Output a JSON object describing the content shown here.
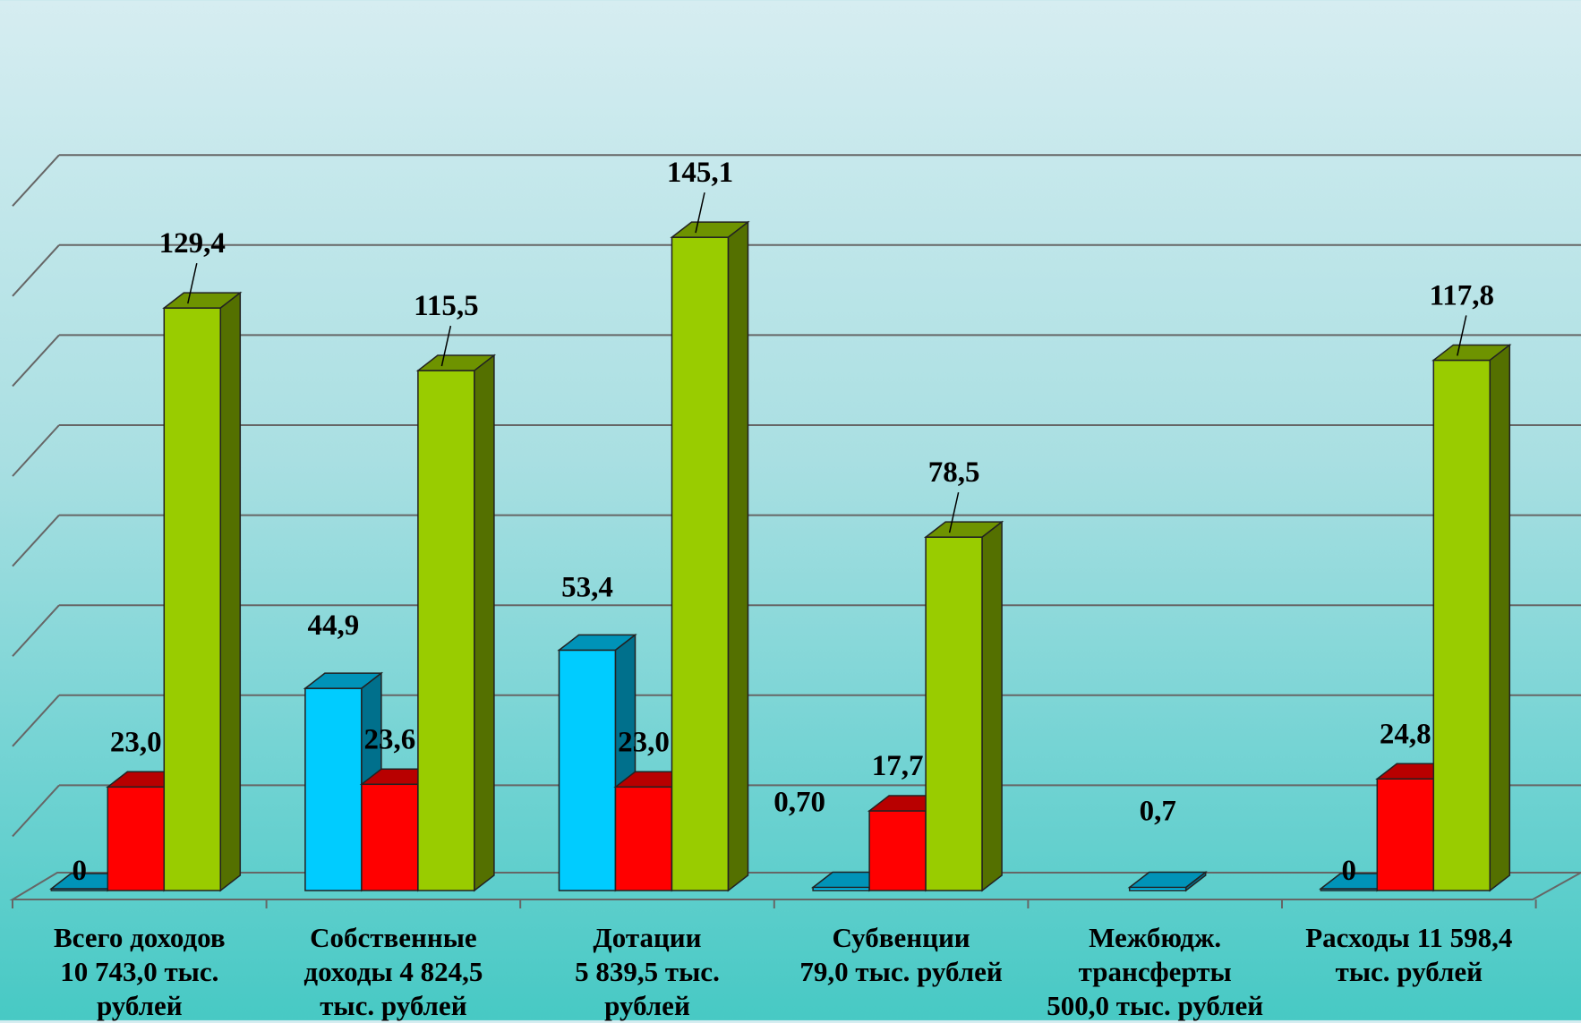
{
  "chart_data": {
    "type": "bar",
    "title": "",
    "xlabel": "",
    "ylabel": "",
    "ylim": [
      0,
      160
    ],
    "grid": true,
    "three_d": true,
    "categories": [
      "Всего доходов 10 743,0 тыс. рублей",
      "Собственные доходы 4 824,5 тыс. рублей",
      "Дотации 5 839,5 тыс. рублей",
      "Субвенции 79,0 тыс. рублей",
      "Межбюдж. трансферты 500,0 тыс. рублей",
      "Расходы 11 598,4 тыс. рублей"
    ],
    "series": [
      {
        "color": "#00ccff",
        "values": [
          0,
          44.9,
          53.4,
          0.7,
          0.7,
          0
        ],
        "labels": [
          "0",
          "44,9",
          "53,4",
          "0,70",
          "0,7",
          "0"
        ]
      },
      {
        "color": "#ff0000",
        "values": [
          23.0,
          23.6,
          23.0,
          17.7,
          null,
          24.8
        ],
        "labels": [
          "23,0",
          "23,6",
          "23,0",
          "17,7",
          "",
          "24,8"
        ]
      },
      {
        "color": "#99cc00",
        "values": [
          129.4,
          115.5,
          145.1,
          78.5,
          null,
          117.8
        ],
        "labels": [
          "129,4",
          "115,5",
          "145,1",
          "78,5",
          "",
          "117,8"
        ]
      }
    ]
  },
  "category_labels": [
    [
      "Всего доходов",
      "10 743,0 тыс.",
      "рублей"
    ],
    [
      "Собственные",
      "доходы 4 824,5",
      "тыс. рублей"
    ],
    [
      "Дотации",
      "5 839,5 тыс.",
      "рублей"
    ],
    [
      "Субвенции",
      "79,0 тыс. рублей"
    ],
    [
      "Межбюдж.",
      "трансферты",
      "500,0 тыс. рублей"
    ],
    [
      "Расходы 11 598,4",
      "тыс. рублей"
    ]
  ]
}
